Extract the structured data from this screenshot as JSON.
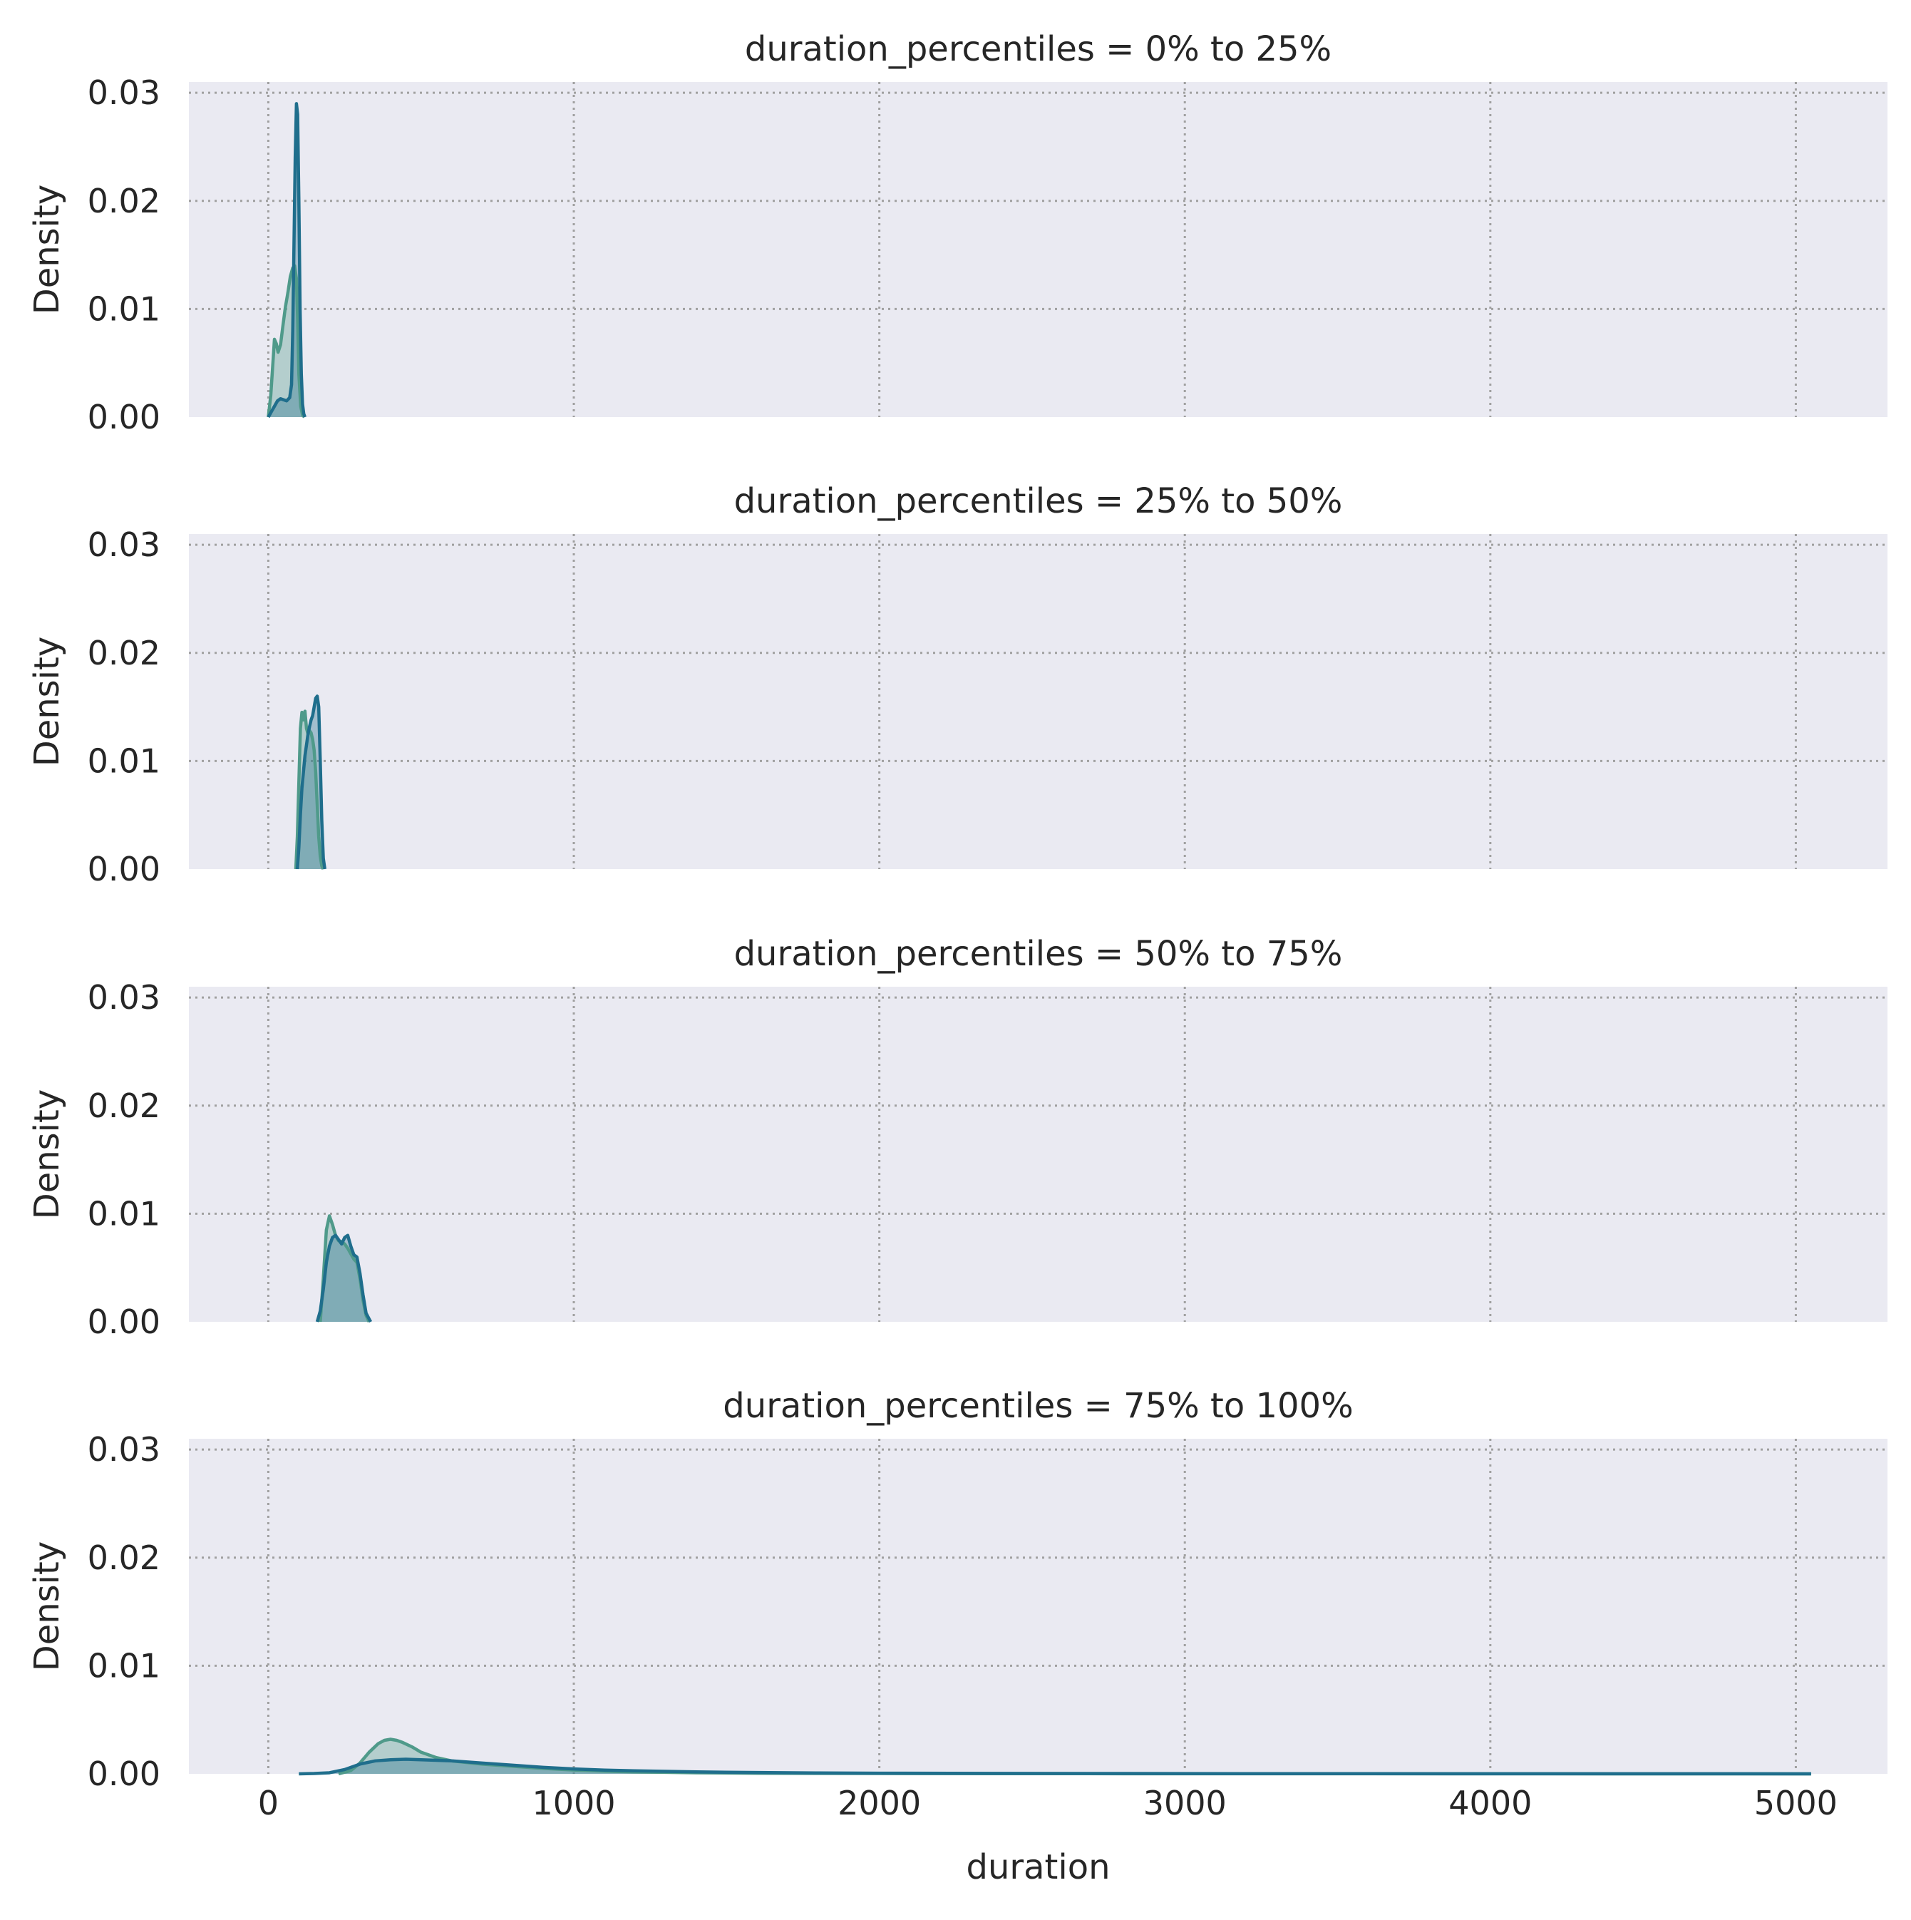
{
  "chart_data": {
    "type": "area",
    "kind": "kde",
    "xlabel": "duration",
    "ylabel": "Density",
    "xlim": [
      -260,
      5300
    ],
    "ylim": [
      0,
      0.031
    ],
    "x_ticks": [
      0,
      1000,
      2000,
      3000,
      4000,
      5000
    ],
    "y_ticks": [
      0.0,
      0.01,
      0.02,
      0.03
    ],
    "y_tick_labels": [
      "0.00",
      "0.01",
      "0.02",
      "0.03"
    ],
    "grid": true,
    "grid_style": "dotted",
    "background_color": "#eaeaf2",
    "series_colors": [
      "#4f9a8a",
      "#1f6e8c"
    ],
    "fill_color": "#8fb4bd",
    "facet_variable": "duration_percentiles",
    "panels": [
      {
        "title": "duration_percentiles = 0% to 25%",
        "series": [
          {
            "x": [
              0,
              8,
              15,
              20,
              26,
              32,
              40,
              48,
              56,
              64,
              72,
              80,
              86,
              92,
              96,
              100,
              106,
              112,
              118
            ],
            "y": [
              0,
              0.002,
              0.005,
              0.0072,
              0.0068,
              0.006,
              0.0067,
              0.0085,
              0.0102,
              0.0115,
              0.013,
              0.0138,
              0.014,
              0.0128,
              0.009,
              0.004,
              0.001,
              0.0002,
              0
            ]
          },
          {
            "x": [
              0,
              10,
              20,
              30,
              40,
              50,
              60,
              70,
              76,
              80,
              84,
              88,
              92,
              96,
              100,
              104,
              108,
              112,
              116,
              120
            ],
            "y": [
              0,
              0.0005,
              0.001,
              0.0015,
              0.0017,
              0.0016,
              0.0015,
              0.0018,
              0.003,
              0.008,
              0.016,
              0.024,
              0.029,
              0.028,
              0.02,
              0.01,
              0.004,
              0.0012,
              0.0003,
              0
            ]
          }
        ]
      },
      {
        "title": "duration_percentiles = 25% to 50%",
        "series": [
          {
            "x": [
              90,
              95,
              100,
              105,
              110,
              115,
              120,
              125,
              130,
              135,
              140,
              145,
              150,
              155,
              160,
              165,
              170,
              175,
              180
            ],
            "y": [
              0,
              0.003,
              0.008,
              0.013,
              0.0145,
              0.0138,
              0.0146,
              0.013,
              0.0125,
              0.0128,
              0.0126,
              0.012,
              0.011,
              0.009,
              0.006,
              0.003,
              0.0012,
              0.0003,
              0
            ]
          },
          {
            "x": [
              95,
              100,
              105,
              110,
              115,
              120,
              125,
              130,
              135,
              140,
              145,
              150,
              155,
              160,
              165,
              170,
              175,
              180,
              185
            ],
            "y": [
              0,
              0.002,
              0.005,
              0.0075,
              0.009,
              0.0105,
              0.0115,
              0.0125,
              0.0132,
              0.0138,
              0.0142,
              0.015,
              0.0158,
              0.016,
              0.015,
              0.01,
              0.0045,
              0.001,
              0
            ]
          }
        ]
      },
      {
        "title": "duration_percentiles = 50% to 75%",
        "series": [
          {
            "x": [
              170,
              180,
              190,
              200,
              210,
              220,
              230,
              240,
              250,
              260,
              270,
              280,
              290,
              300,
              310,
              320,
              330
            ],
            "y": [
              0,
              0.004,
              0.0085,
              0.0098,
              0.009,
              0.008,
              0.0075,
              0.0074,
              0.0072,
              0.0068,
              0.0063,
              0.0058,
              0.0055,
              0.004,
              0.002,
              0.0006,
              0
            ]
          },
          {
            "x": [
              160,
              170,
              180,
              190,
              200,
              210,
              220,
              230,
              240,
              250,
              260,
              270,
              280,
              290,
              300,
              310,
              320,
              335
            ],
            "y": [
              0,
              0.001,
              0.003,
              0.0055,
              0.007,
              0.0078,
              0.008,
              0.0076,
              0.0072,
              0.0078,
              0.008,
              0.007,
              0.0062,
              0.006,
              0.0045,
              0.0025,
              0.0008,
              0
            ]
          }
        ]
      },
      {
        "title": "duration_percentiles = 75% to 100%",
        "series": [
          {
            "x": [
              230,
              270,
              300,
              330,
              360,
              380,
              400,
              420,
              440,
              470,
              500,
              550,
              600,
              700,
              800,
              900,
              1000,
              1100,
              1200,
              1400,
              1600,
              1800,
              2000,
              2400,
              2800,
              3200,
              3600,
              4000,
              4400,
              4800,
              5050
            ],
            "y": [
              0,
              0.0003,
              0.001,
              0.002,
              0.0028,
              0.0031,
              0.0032,
              0.0031,
              0.0029,
              0.0025,
              0.002,
              0.0015,
              0.0012,
              0.0009,
              0.0007,
              0.0005,
              0.00035,
              0.00025,
              0.00018,
              0.0001,
              6e-05,
              4e-05,
              3e-05,
              2e-05,
              1e-05,
              8e-06,
              6e-06,
              5e-06,
              4e-06,
              3e-06,
              0
            ]
          },
          {
            "x": [
              100,
              150,
              200,
              250,
              300,
              350,
              400,
              450,
              500,
              550,
              600,
              700,
              800,
              900,
              1000,
              1100,
              1200,
              1400,
              1600,
              1800,
              2000,
              2400,
              2800,
              3200,
              3600,
              4000,
              4400,
              4800,
              5050
            ],
            "y": [
              0,
              3e-05,
              0.0001,
              0.0004,
              0.0009,
              0.0012,
              0.0013,
              0.00135,
              0.0013,
              0.00125,
              0.0012,
              0.001,
              0.0008,
              0.0006,
              0.00045,
              0.00035,
              0.00028,
              0.00018,
              0.00012,
              8e-05,
              6e-05,
              4e-05,
              3e-05,
              2e-05,
              1.5e-05,
              1e-05,
              8e-06,
              5e-06,
              0
            ]
          }
        ]
      }
    ]
  }
}
